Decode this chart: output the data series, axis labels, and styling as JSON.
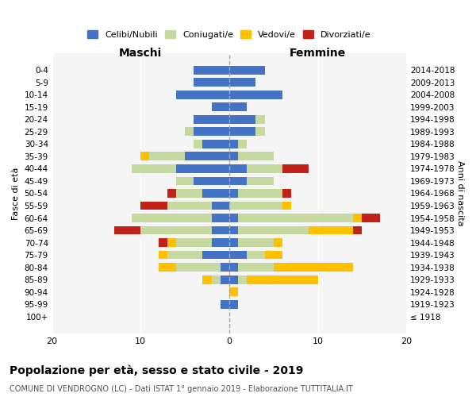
{
  "age_groups": [
    "100+",
    "95-99",
    "90-94",
    "85-89",
    "80-84",
    "75-79",
    "70-74",
    "65-69",
    "60-64",
    "55-59",
    "50-54",
    "45-49",
    "40-44",
    "35-39",
    "30-34",
    "25-29",
    "20-24",
    "15-19",
    "10-14",
    "5-9",
    "0-4"
  ],
  "birth_years": [
    "≤ 1918",
    "1919-1923",
    "1924-1928",
    "1929-1933",
    "1934-1938",
    "1939-1943",
    "1944-1948",
    "1949-1953",
    "1954-1958",
    "1959-1963",
    "1964-1968",
    "1969-1973",
    "1974-1978",
    "1979-1983",
    "1984-1988",
    "1989-1993",
    "1994-1998",
    "1999-2003",
    "2004-2008",
    "2009-2013",
    "2014-2018"
  ],
  "males": {
    "celibi": [
      0,
      1,
      0,
      1,
      1,
      3,
      2,
      2,
      2,
      2,
      3,
      4,
      6,
      5,
      3,
      4,
      4,
      2,
      6,
      4,
      4
    ],
    "coniugati": [
      0,
      0,
      0,
      1,
      5,
      4,
      4,
      8,
      9,
      5,
      3,
      2,
      5,
      4,
      1,
      1,
      0,
      0,
      0,
      0,
      0
    ],
    "vedovi": [
      0,
      0,
      0,
      1,
      2,
      1,
      1,
      0,
      0,
      0,
      0,
      0,
      0,
      1,
      0,
      0,
      0,
      0,
      0,
      0,
      0
    ],
    "divorziati": [
      0,
      0,
      0,
      0,
      0,
      0,
      1,
      3,
      0,
      3,
      1,
      0,
      0,
      0,
      0,
      0,
      0,
      0,
      0,
      0,
      0
    ]
  },
  "females": {
    "nubili": [
      0,
      1,
      0,
      1,
      1,
      2,
      1,
      1,
      1,
      0,
      1,
      2,
      2,
      1,
      1,
      3,
      3,
      2,
      6,
      3,
      4
    ],
    "coniugate": [
      0,
      0,
      0,
      1,
      4,
      2,
      4,
      8,
      13,
      6,
      5,
      3,
      4,
      4,
      1,
      1,
      1,
      0,
      0,
      0,
      0
    ],
    "vedove": [
      0,
      0,
      1,
      8,
      9,
      2,
      1,
      5,
      1,
      1,
      0,
      0,
      0,
      0,
      0,
      0,
      0,
      0,
      0,
      0,
      0
    ],
    "divorziate": [
      0,
      0,
      0,
      0,
      0,
      0,
      0,
      1,
      2,
      0,
      1,
      0,
      3,
      0,
      0,
      0,
      0,
      0,
      0,
      0,
      0
    ]
  },
  "colors": {
    "celibi": "#4472c4",
    "coniugati": "#c5d9a0",
    "vedovi": "#ffc000",
    "divorziati": "#c0221a"
  },
  "title": "Popolazione per età, sesso e stato civile - 2019",
  "subtitle": "COMUNE DI VENDROGNO (LC) - Dati ISTAT 1° gennaio 2019 - Elaborazione TUTTITALIA.IT",
  "xlabel_left": "Maschi",
  "xlabel_right": "Femmine",
  "ylabel_left": "Fasce di età",
  "ylabel_right": "Anni di nascita",
  "xlim": 20,
  "legend_labels": [
    "Celibi/Nubili",
    "Coniugati/e",
    "Vedovi/e",
    "Divorziati/e"
  ],
  "bg_color": "#f5f5f5"
}
